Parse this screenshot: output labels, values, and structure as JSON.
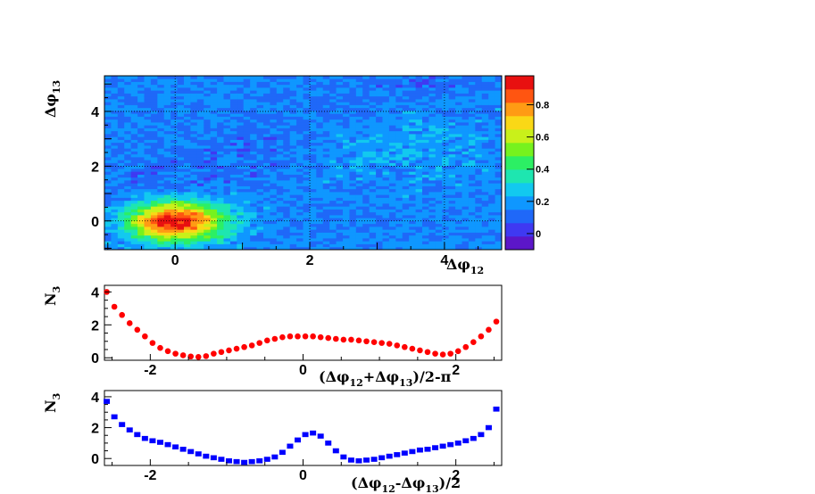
{
  "chart_data": [
    {
      "type": "heatmap",
      "title": "",
      "xlabel": "Δφ",
      "xlabel_sub": "12",
      "ylabel": "Δφ",
      "ylabel_sub": "13",
      "xlim": [
        -1.05,
        4.85
      ],
      "ylim": [
        -1.05,
        5.3
      ],
      "x_ticks": [
        0,
        2,
        4
      ],
      "x_tick_labels": [
        "0",
        "2",
        "4"
      ],
      "y_ticks": [
        0,
        2,
        4
      ],
      "y_tick_labels": [
        "0",
        "2",
        "4"
      ],
      "grid": true,
      "colorbar": {
        "range": [
          -0.1,
          0.98
        ],
        "ticks": [
          0,
          0.2,
          0.4,
          0.6,
          0.8
        ],
        "tick_labels": [
          "0",
          "0.2",
          "0.4",
          "0.6",
          "0.8"
        ],
        "colors": [
          "#5c16c8",
          "#3f39f2",
          "#1f68f8",
          "#0f97ff",
          "#12c9ef",
          "#1ee6b0",
          "#2cef64",
          "#76f21e",
          "#c9f01a",
          "#fad816",
          "#ff9b14",
          "#ff5511",
          "#e81010"
        ]
      },
      "grid_size": [
        60,
        60
      ],
      "peaks": [
        {
          "x": 0,
          "y": 0,
          "amplitude": 0.82,
          "sigma": 0.5,
          "note": "near-side"
        },
        {
          "x": 3.1416,
          "y": 3.1416,
          "amplitude": 0.06,
          "sigma": 1.0,
          "note": "away-side"
        }
      ],
      "baseline": 0.16,
      "noise": 0.07
    },
    {
      "type": "scatter",
      "title": "",
      "xlabel": "(Δφ",
      "xlabel_parts": [
        {
          "text": "(Δφ",
          "sub": false
        },
        {
          "text": "12",
          "sub": true
        },
        {
          "text": "+Δφ",
          "sub": false
        },
        {
          "text": "13",
          "sub": true
        },
        {
          "text": ")/2-π",
          "sub": false
        }
      ],
      "ylabel": "N",
      "ylabel_sub": "3",
      "xlim": [
        -2.6,
        2.6
      ],
      "ylim": [
        -0.15,
        4.4
      ],
      "x_ticks": [
        -2,
        0,
        2
      ],
      "x_tick_labels": [
        "-2",
        "0",
        "2"
      ],
      "y_ticks": [
        0,
        2,
        4
      ],
      "y_tick_labels": [
        "0",
        "2",
        "4"
      ],
      "marker": "circle",
      "color": "#ff0000",
      "x": [
        -2.57,
        -2.47,
        -2.37,
        -2.27,
        -2.17,
        -2.07,
        -1.97,
        -1.87,
        -1.77,
        -1.67,
        -1.57,
        -1.47,
        -1.37,
        -1.27,
        -1.17,
        -1.07,
        -0.97,
        -0.87,
        -0.77,
        -0.67,
        -0.57,
        -0.47,
        -0.37,
        -0.27,
        -0.17,
        -0.07,
        0.03,
        0.13,
        0.23,
        0.33,
        0.43,
        0.53,
        0.63,
        0.73,
        0.83,
        0.93,
        1.03,
        1.13,
        1.23,
        1.33,
        1.43,
        1.53,
        1.63,
        1.73,
        1.83,
        1.93,
        2.03,
        2.13,
        2.23,
        2.33,
        2.43,
        2.53,
        2.63
      ],
      "y": [
        4.0,
        3.1,
        2.6,
        2.1,
        1.7,
        1.3,
        0.9,
        0.6,
        0.4,
        0.25,
        0.15,
        0.08,
        0.05,
        0.1,
        0.25,
        0.35,
        0.45,
        0.55,
        0.65,
        0.75,
        0.9,
        1.05,
        1.15,
        1.25,
        1.3,
        1.3,
        1.3,
        1.3,
        1.25,
        1.2,
        1.15,
        1.1,
        1.1,
        1.05,
        1.0,
        0.95,
        0.9,
        0.85,
        0.75,
        0.65,
        0.55,
        0.45,
        0.35,
        0.25,
        0.2,
        0.25,
        0.4,
        0.65,
        0.95,
        1.3,
        1.7,
        2.2,
        3.5
      ]
    },
    {
      "type": "scatter",
      "title": "",
      "xlabel_parts": [
        {
          "text": "(Δφ",
          "sub": false
        },
        {
          "text": "12",
          "sub": true
        },
        {
          "text": "-Δφ",
          "sub": false
        },
        {
          "text": "13",
          "sub": true
        },
        {
          "text": ")/2",
          "sub": false
        }
      ],
      "ylabel": "N",
      "ylabel_sub": "3",
      "xlim": [
        -2.6,
        2.6
      ],
      "ylim": [
        -0.45,
        4.4
      ],
      "x_ticks": [
        -2,
        0,
        2
      ],
      "x_tick_labels": [
        "-2",
        "0",
        "2"
      ],
      "y_ticks": [
        0,
        2,
        4
      ],
      "y_tick_labels": [
        "0",
        "2",
        "4"
      ],
      "marker": "square",
      "color": "#0000ff",
      "x": [
        -2.57,
        -2.47,
        -2.37,
        -2.27,
        -2.17,
        -2.07,
        -1.97,
        -1.87,
        -1.77,
        -1.67,
        -1.57,
        -1.47,
        -1.37,
        -1.27,
        -1.17,
        -1.07,
        -0.97,
        -0.87,
        -0.77,
        -0.67,
        -0.57,
        -0.47,
        -0.37,
        -0.27,
        -0.17,
        -0.07,
        0.03,
        0.13,
        0.23,
        0.33,
        0.43,
        0.53,
        0.63,
        0.73,
        0.83,
        0.93,
        1.03,
        1.13,
        1.23,
        1.33,
        1.43,
        1.53,
        1.63,
        1.73,
        1.83,
        1.93,
        2.03,
        2.13,
        2.23,
        2.33,
        2.43,
        2.53,
        2.63
      ],
      "y": [
        3.7,
        2.7,
        2.2,
        1.85,
        1.55,
        1.3,
        1.15,
        1.05,
        0.9,
        0.75,
        0.6,
        0.45,
        0.3,
        0.15,
        0.05,
        -0.05,
        -0.15,
        -0.2,
        -0.25,
        -0.2,
        -0.15,
        -0.05,
        0.1,
        0.4,
        0.8,
        1.2,
        1.55,
        1.65,
        1.45,
        1.0,
        0.5,
        0.1,
        -0.1,
        -0.15,
        -0.1,
        -0.05,
        0.05,
        0.15,
        0.25,
        0.35,
        0.45,
        0.55,
        0.6,
        0.7,
        0.8,
        0.9,
        1.0,
        1.15,
        1.3,
        1.55,
        2.0,
        3.2,
        4.1
      ]
    }
  ]
}
